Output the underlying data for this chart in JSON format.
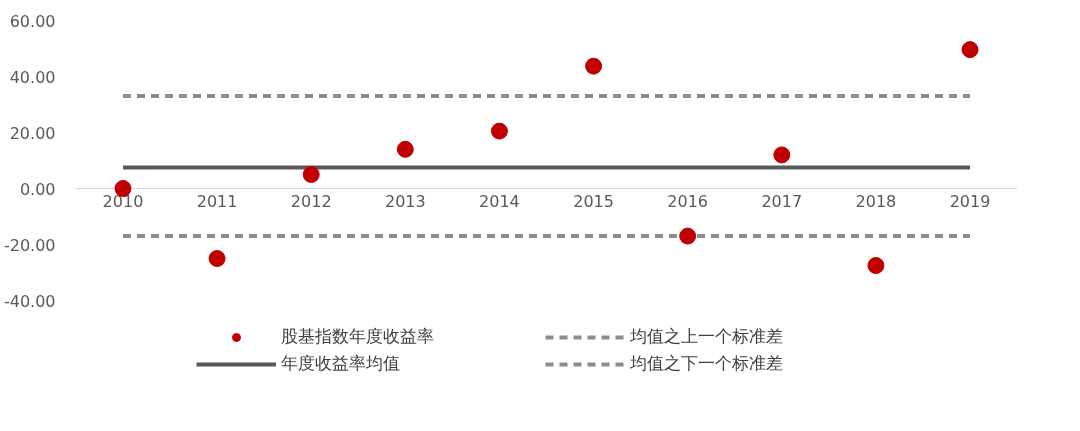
{
  "chart_data": {
    "type": "scatter",
    "categories": [
      "2010",
      "2011",
      "2012",
      "2013",
      "2014",
      "2015",
      "2016",
      "2017",
      "2018",
      "2019"
    ],
    "series": [
      {
        "name": "股基指数年度收益率",
        "color": "#c00000",
        "marker": "circle",
        "values": [
          0,
          -25,
          5,
          14,
          20.5,
          43.7,
          -17,
          12,
          -27.5,
          49.6
        ]
      },
      {
        "name": "年度收益率均值",
        "type": "line",
        "color": "#595959",
        "line_style": "solid",
        "values": [
          7.5,
          7.5,
          7.5,
          7.5,
          7.5,
          7.5,
          7.5,
          7.5,
          7.5,
          7.5
        ]
      },
      {
        "name": "均值之上一个标准差",
        "type": "line",
        "color": "#8c8c8c",
        "line_style": "dashed",
        "values": [
          33,
          33,
          33,
          33,
          33,
          33,
          33,
          33,
          33,
          33
        ]
      },
      {
        "name": "均值之下一个标准差",
        "type": "line",
        "color": "#8c8c8c",
        "line_style": "dashed",
        "values": [
          -17,
          -17,
          -17,
          -17,
          -17,
          -17,
          -17,
          -17,
          -17,
          -17
        ]
      }
    ],
    "ylim": [
      -40,
      60
    ],
    "yticks": [
      {
        "value": -40,
        "label": "-40.00"
      },
      {
        "value": -20,
        "label": "-20.00"
      },
      {
        "value": 0,
        "label": "0.00"
      },
      {
        "value": 20,
        "label": "20.00"
      },
      {
        "value": 40,
        "label": "40.00"
      },
      {
        "value": 60,
        "label": "60.00"
      }
    ],
    "grid": false,
    "legend": "bottom"
  }
}
